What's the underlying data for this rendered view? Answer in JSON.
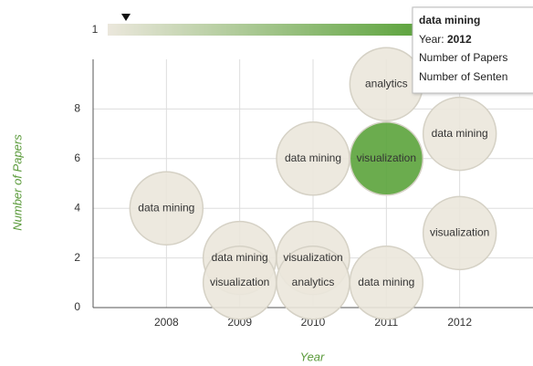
{
  "chart_data": {
    "type": "scatter",
    "x_label": "Year",
    "y_label": "Number of Papers",
    "xlim": [
      2007,
      2013
    ],
    "xticks": [
      2008,
      2009,
      2010,
      2011,
      2012
    ],
    "ylim": [
      0,
      10
    ],
    "yticks": [
      0,
      2,
      4,
      6,
      8
    ],
    "grid": true,
    "x": [
      2008,
      2009,
      2009,
      2010,
      2010,
      2010,
      2011,
      2011,
      2011,
      2012,
      2012
    ],
    "values": [
      4,
      2,
      1,
      6,
      2,
      1,
      9,
      6,
      1,
      7,
      3
    ],
    "labels": [
      "data mining",
      "data mining",
      "visualization",
      "data mining",
      "visualization",
      "analytics",
      "analytics",
      "visualization",
      "data mining",
      "data mining",
      "visualization"
    ],
    "colors": [
      "#ebe7dc",
      "#ebe7dc",
      "#ebe7dc",
      "#ebe7dc",
      "#ebe7dc",
      "#ebe7dc",
      "#ebe7dc",
      "#5ba33b",
      "#ebe7dc",
      "#ebe7dc",
      "#ebe7dc"
    ],
    "color_scale": {
      "min_label": 1,
      "colors": [
        "#ebe7dc",
        "#5ba33b"
      ]
    },
    "tooltip": {
      "title": "data mining",
      "year_label": "Year:",
      "year": 2012,
      "line3": "Number of Papers",
      "line4": "Number of Senten"
    }
  }
}
